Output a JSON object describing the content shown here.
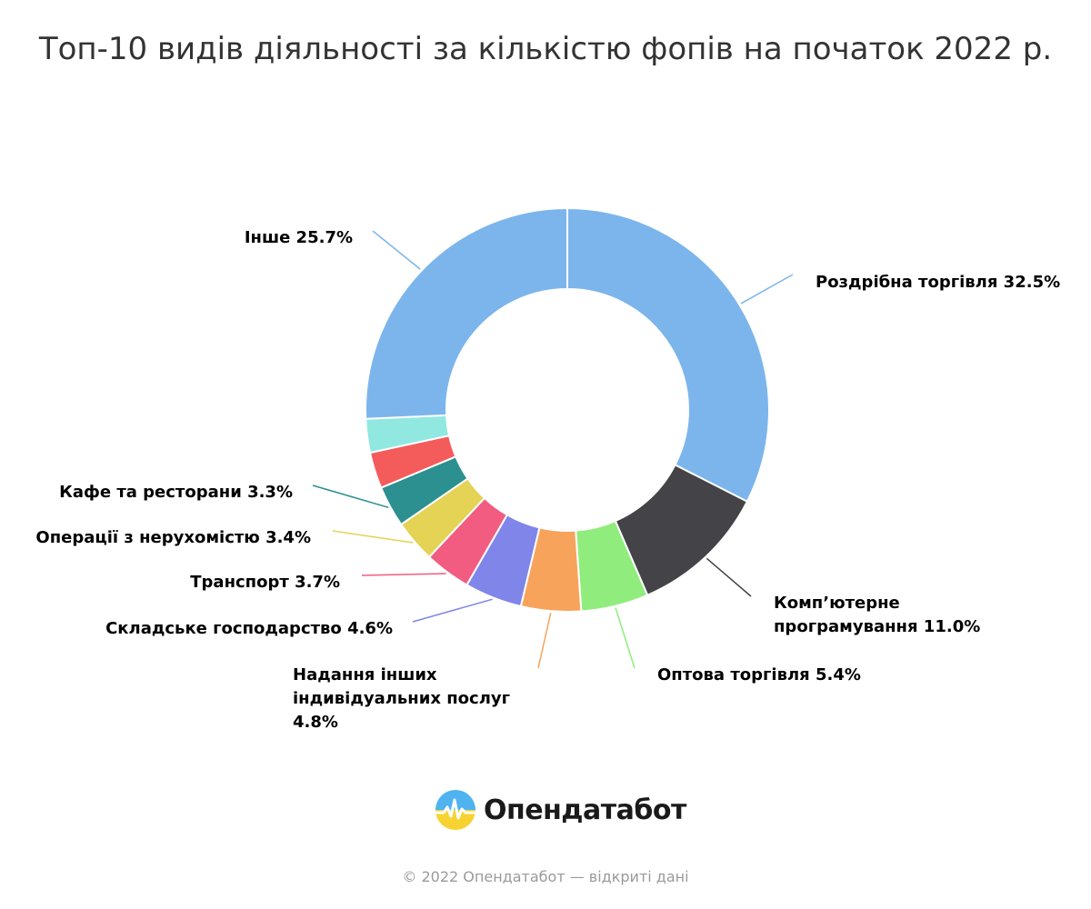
{
  "chart_data": {
    "type": "pie",
    "variant": "donut",
    "title": "Топ-10 видів діяльності за кількістю фопів на початок 2022 р.",
    "unit": "%",
    "slices": [
      {
        "label": "Роздрібна торгівля 32.5%",
        "value": 32.5,
        "color": "#7cb5ec",
        "label_lines": [
          "Роздрібна торгівля 32.5%"
        ]
      },
      {
        "label": "Комп’ютерне програмування 11.0%",
        "value": 11.0,
        "color": "#434348",
        "label_lines": [
          "Комп’ютерне",
          "програмування 11.0%"
        ]
      },
      {
        "label": "Оптова торгівля 5.4%",
        "value": 5.4,
        "color": "#90ed7d",
        "label_lines": [
          "Оптова торгівля 5.4%"
        ]
      },
      {
        "label": "Надання інших індивідуальних послуг 4.8%",
        "value": 4.8,
        "color": "#f7a35c",
        "label_lines": [
          "Надання інших",
          "індивідуальних послуг",
          "4.8%"
        ]
      },
      {
        "label": "Складське господарство 4.6%",
        "value": 4.6,
        "color": "#8085e9",
        "label_lines": [
          "Складське господарство 4.6%"
        ]
      },
      {
        "label": "Транспорт 3.7%",
        "value": 3.7,
        "color": "#f15c80",
        "label_lines": [
          "Транспорт 3.7%"
        ]
      },
      {
        "label": "Операції з нерухомістю 3.4%",
        "value": 3.4,
        "color": "#e4d354",
        "label_lines": [
          "Операції з нерухомістю 3.4%"
        ]
      },
      {
        "label": "Кафе та ресторани 3.3%",
        "value": 3.3,
        "color": "#2b908f",
        "label_lines": [
          "Кафе та ресторани 3.3%"
        ]
      },
      {
        "label": "",
        "value": 2.9,
        "color": "#f45b5b",
        "label_lines": []
      },
      {
        "label": "",
        "value": 2.7,
        "color": "#91e8e1",
        "label_lines": []
      },
      {
        "label": "Інше 25.7%",
        "value": 25.7,
        "color": "#7cb5ec",
        "label_lines": [
          "Інше 25.7%"
        ]
      }
    ]
  },
  "brand": {
    "logo_text": "Опендатабот",
    "logo_icon": "opendatabot-logo-icon",
    "colors": {
      "logo_blue": "#4fb3f0",
      "logo_yellow": "#f6d331"
    }
  },
  "footer": {
    "text": "© 2022 Опендатабот — відкриті дані"
  }
}
